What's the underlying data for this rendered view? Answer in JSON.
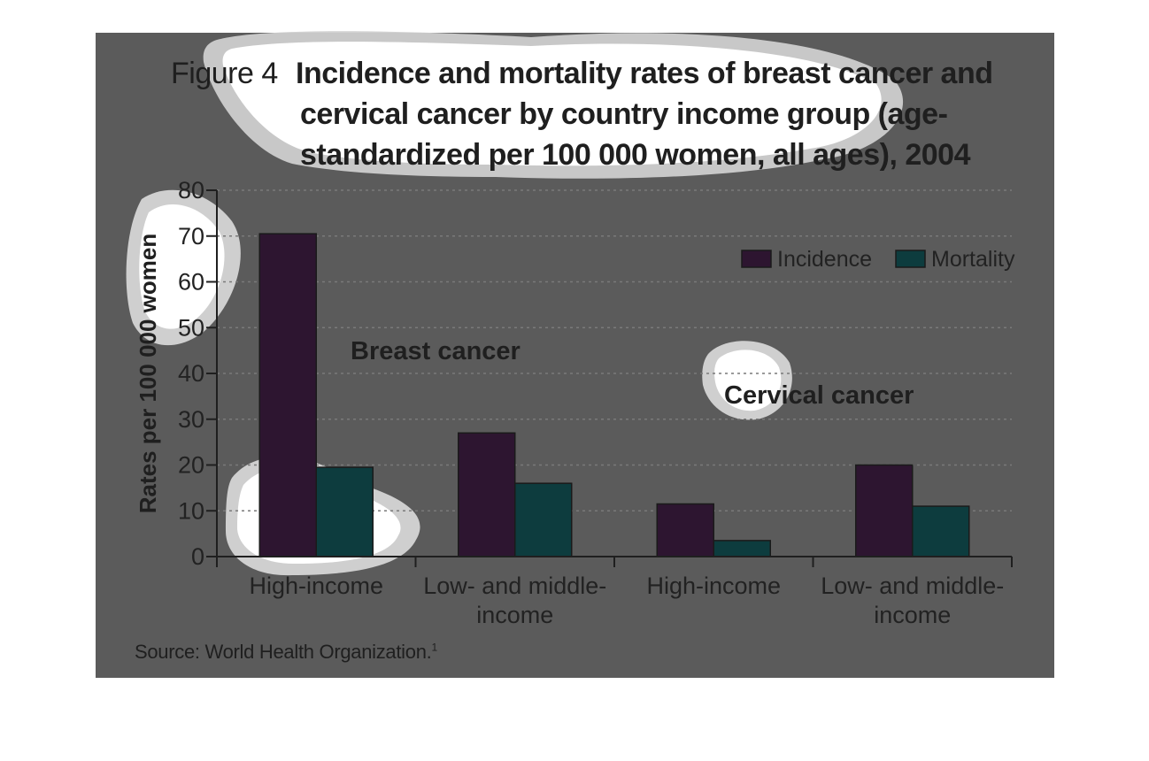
{
  "figure": {
    "number": "Figure 4",
    "title_lines": [
      "Incidence and mortality rates of breast cancer and",
      "cervical cancer by country income group (age-",
      "standardized per 100 000 women, all ages), 2004"
    ],
    "source": "Source: World Health Organization.",
    "source_sup": "1"
  },
  "chart_data": {
    "type": "bar",
    "ylabel": "Rates per 100 000 women",
    "xlabel": "",
    "ylim": [
      0,
      80
    ],
    "yticks": [
      "0",
      "10",
      "20",
      "30",
      "40",
      "50",
      "60",
      "70",
      "80"
    ],
    "grid": true,
    "legend_position": "top-right",
    "groups": [
      {
        "label": "Breast cancer",
        "categories": [
          "High-income",
          "Low- and middle-income"
        ]
      },
      {
        "label": "Cervical cancer",
        "categories": [
          "High-income",
          "Low- and middle-income"
        ]
      }
    ],
    "category_labels": [
      [
        "High-income"
      ],
      [
        "Low- and middle-",
        "income"
      ],
      [
        "High-income"
      ],
      [
        "Low- and middle-",
        "income"
      ]
    ],
    "series": [
      {
        "name": "Incidence",
        "color": "#2d1530",
        "values": [
          70.5,
          27,
          11.5,
          20
        ]
      },
      {
        "name": "Mortality",
        "color": "#0d3c3e",
        "values": [
          19.5,
          16,
          3.5,
          11
        ]
      }
    ]
  },
  "colors": {
    "panel": "#5b5b5b",
    "text": "#1f1f1f",
    "tick_text": "#222222",
    "grid": "#7a7a7a"
  }
}
